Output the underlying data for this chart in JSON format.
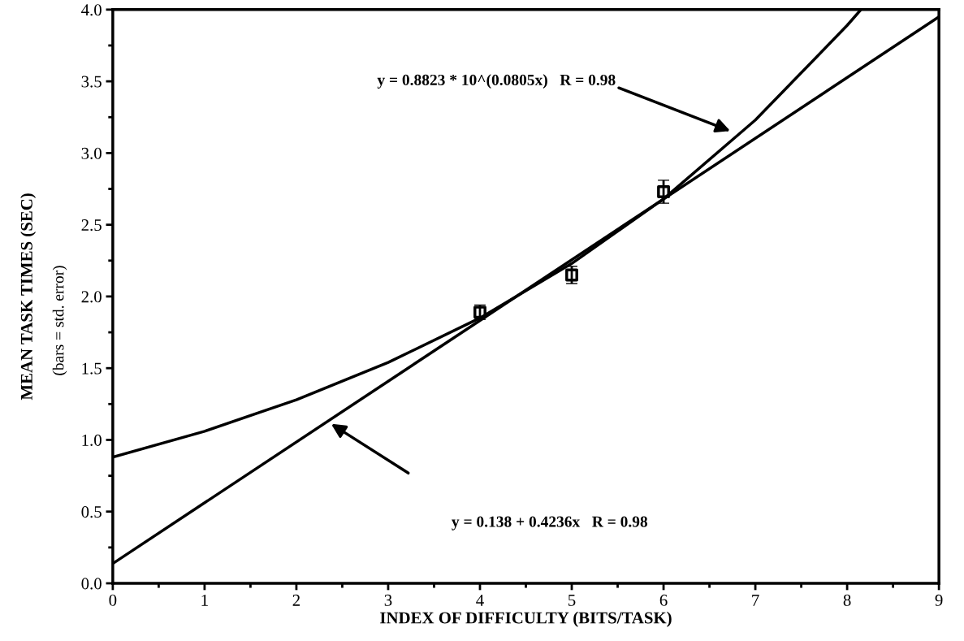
{
  "chart_data": {
    "type": "scatter",
    "xlabel": "INDEX OF DIFFICULTY (BITS/TASK)",
    "ylabel": "MEAN TASK TIMES (SEC)",
    "xlim": [
      0,
      9
    ],
    "xticks": [
      0,
      1,
      2,
      3,
      4,
      5,
      6,
      7,
      8,
      9
    ],
    "ylim": [
      0,
      4
    ],
    "yticks": [
      {
        "value": 0,
        "label": "0.0"
      },
      0.5,
      {
        "value": 1,
        "label": "1.0"
      },
      1.5,
      {
        "value": 2,
        "label": "2.0"
      },
      2.5,
      {
        "value": 3,
        "label": "3.0"
      },
      3.5,
      {
        "value": 4,
        "label": "4.0"
      }
    ],
    "grid": false,
    "legend": false,
    "series": [
      {
        "color": "#000000",
        "marker": "square",
        "x": [
          4,
          5,
          6
        ],
        "values": [
          1.89,
          2.15,
          2.73
        ],
        "errors": [
          0.05,
          0.06,
          0.08
        ]
      },
      {
        "type": "line",
        "color": "#000000",
        "marker": "none",
        "line_style": "solid",
        "x": [
          0,
          1,
          2,
          3,
          4,
          5,
          6,
          7,
          8,
          8.15
        ],
        "values": [
          0.88,
          1.06,
          1.28,
          1.54,
          1.85,
          2.23,
          2.68,
          3.23,
          3.89,
          4.0
        ]
      },
      {
        "type": "line",
        "color": "#000000",
        "marker": "none",
        "line_style": "solid",
        "x": [
          0,
          9
        ],
        "values": [
          0.138,
          3.95
        ]
      }
    ],
    "annotations": [
      "y = 0.8823 * 10^(0.0805x)   R = 0.98",
      "y = 0.138 + 0.4236x   R = 0.98",
      "(bars = std. error)"
    ]
  }
}
